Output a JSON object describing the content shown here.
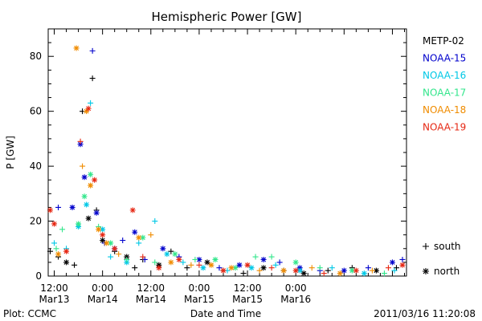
{
  "chart_data": {
    "type": "scatter",
    "title": "Hemispheric Power [GW]",
    "ylabel": "P [GW]",
    "xlabel": "Date and Time",
    "xlim": [
      "2011-03-13 10:30",
      "2011-03-17 03:30"
    ],
    "ylim": [
      0,
      90
    ],
    "y_ticks": [
      0,
      20,
      40,
      60,
      80
    ],
    "x_ticks": [
      {
        "time": "2011-03-13 12:00",
        "label1": "12:00",
        "label2": "Mar13"
      },
      {
        "time": "2011-03-14 00:00",
        "label1": "0:00",
        "label2": "Mar14"
      },
      {
        "time": "2011-03-14 12:00",
        "label1": "12:00",
        "label2": "Mar14"
      },
      {
        "time": "2011-03-15 00:00",
        "label1": "0:00",
        "label2": "Mar15"
      },
      {
        "time": "2011-03-15 12:00",
        "label1": "12:00",
        "label2": "Mar15"
      },
      {
        "time": "2011-03-16 00:00",
        "label1": "0:00",
        "label2": "Mar16"
      }
    ],
    "grid": false,
    "legend_position": "right",
    "series": [
      {
        "name": "METP-02",
        "color": "#000000",
        "points": [
          {
            "t": "2011-03-13 11:00",
            "y": 9,
            "m": "+"
          },
          {
            "t": "2011-03-13 13:00",
            "y": 7,
            "m": "+"
          },
          {
            "t": "2011-03-13 15:00",
            "y": 5,
            "m": "*"
          },
          {
            "t": "2011-03-13 17:00",
            "y": 4,
            "m": "+"
          },
          {
            "t": "2011-03-13 19:00",
            "y": 60,
            "m": "+"
          },
          {
            "t": "2011-03-13 20:30",
            "y": 21,
            "m": "*"
          },
          {
            "t": "2011-03-13 21:30",
            "y": 72,
            "m": "+"
          },
          {
            "t": "2011-03-13 22:30",
            "y": 24,
            "m": "+"
          },
          {
            "t": "2011-03-14 00:00",
            "y": 13,
            "m": "*"
          },
          {
            "t": "2011-03-14 03:00",
            "y": 9,
            "m": "+"
          },
          {
            "t": "2011-03-14 06:00",
            "y": 7,
            "m": "*"
          },
          {
            "t": "2011-03-14 08:00",
            "y": 3,
            "m": "+"
          },
          {
            "t": "2011-03-14 10:00",
            "y": 6,
            "m": "+"
          },
          {
            "t": "2011-03-14 14:00",
            "y": 4,
            "m": "*"
          },
          {
            "t": "2011-03-14 17:00",
            "y": 9,
            "m": "+"
          },
          {
            "t": "2011-03-14 21:00",
            "y": 3,
            "m": "+"
          },
          {
            "t": "2011-03-15 02:00",
            "y": 5,
            "m": "*"
          },
          {
            "t": "2011-03-15 06:00",
            "y": 2,
            "m": "+"
          },
          {
            "t": "2011-03-15 11:00",
            "y": 1,
            "m": "+"
          },
          {
            "t": "2011-03-15 16:00",
            "y": 3,
            "m": "*"
          },
          {
            "t": "2011-03-15 21:00",
            "y": 2,
            "m": "+"
          },
          {
            "t": "2011-03-16 02:00",
            "y": 1,
            "m": "*"
          },
          {
            "t": "2011-03-16 08:00",
            "y": 2,
            "m": "+"
          },
          {
            "t": "2011-03-16 14:00",
            "y": 3,
            "m": "+"
          },
          {
            "t": "2011-03-16 20:00",
            "y": 2,
            "m": "*"
          },
          {
            "t": "2011-03-17 01:00",
            "y": 3,
            "m": "+"
          }
        ]
      },
      {
        "name": "NOAA-15",
        "color": "#0000cc",
        "points": [
          {
            "t": "2011-03-13 13:00",
            "y": 25,
            "m": "+"
          },
          {
            "t": "2011-03-13 16:30",
            "y": 25,
            "m": "*"
          },
          {
            "t": "2011-03-13 18:30",
            "y": 48,
            "m": "*"
          },
          {
            "t": "2011-03-13 19:30",
            "y": 36,
            "m": "*"
          },
          {
            "t": "2011-03-13 21:30",
            "y": 82,
            "m": "+"
          },
          {
            "t": "2011-03-13 22:30",
            "y": 23,
            "m": "*"
          },
          {
            "t": "2011-03-14 00:30",
            "y": 12,
            "m": "+"
          },
          {
            "t": "2011-03-14 03:00",
            "y": 10,
            "m": "*"
          },
          {
            "t": "2011-03-14 05:00",
            "y": 13,
            "m": "+"
          },
          {
            "t": "2011-03-14 08:00",
            "y": 16,
            "m": "*"
          },
          {
            "t": "2011-03-14 10:30",
            "y": 6,
            "m": "+"
          },
          {
            "t": "2011-03-14 15:00",
            "y": 10,
            "m": "*"
          },
          {
            "t": "2011-03-14 19:00",
            "y": 7,
            "m": "+"
          },
          {
            "t": "2011-03-15 00:00",
            "y": 6,
            "m": "*"
          },
          {
            "t": "2011-03-15 05:00",
            "y": 3,
            "m": "+"
          },
          {
            "t": "2011-03-15 10:00",
            "y": 4,
            "m": "*"
          },
          {
            "t": "2011-03-15 16:00",
            "y": 6,
            "m": "*"
          },
          {
            "t": "2011-03-15 20:00",
            "y": 5,
            "m": "+"
          },
          {
            "t": "2011-03-16 01:00",
            "y": 3,
            "m": "*"
          },
          {
            "t": "2011-03-16 06:00",
            "y": 2,
            "m": "+"
          },
          {
            "t": "2011-03-16 12:00",
            "y": 2,
            "m": "*"
          },
          {
            "t": "2011-03-16 18:00",
            "y": 3,
            "m": "+"
          },
          {
            "t": "2011-03-17 00:00",
            "y": 5,
            "m": "*"
          },
          {
            "t": "2011-03-17 02:30",
            "y": 6,
            "m": "+"
          }
        ]
      },
      {
        "name": "NOAA-16",
        "color": "#00c8e6",
        "points": [
          {
            "t": "2011-03-13 12:00",
            "y": 12,
            "m": "+"
          },
          {
            "t": "2011-03-13 15:00",
            "y": 10,
            "m": "+"
          },
          {
            "t": "2011-03-13 18:00",
            "y": 18,
            "m": "*"
          },
          {
            "t": "2011-03-13 20:00",
            "y": 26,
            "m": "*"
          },
          {
            "t": "2011-03-13 21:00",
            "y": 63,
            "m": "+"
          },
          {
            "t": "2011-03-14 00:00",
            "y": 17,
            "m": "*"
          },
          {
            "t": "2011-03-14 02:00",
            "y": 7,
            "m": "+"
          },
          {
            "t": "2011-03-14 06:00",
            "y": 5,
            "m": "*"
          },
          {
            "t": "2011-03-14 09:00",
            "y": 12,
            "m": "+"
          },
          {
            "t": "2011-03-14 13:00",
            "y": 20,
            "m": "+"
          },
          {
            "t": "2011-03-14 16:00",
            "y": 8,
            "m": "*"
          },
          {
            "t": "2011-03-14 20:00",
            "y": 5,
            "m": "+"
          },
          {
            "t": "2011-03-15 01:00",
            "y": 3,
            "m": "*"
          },
          {
            "t": "2011-03-15 07:00",
            "y": 2,
            "m": "+"
          },
          {
            "t": "2011-03-15 13:00",
            "y": 3,
            "m": "*"
          },
          {
            "t": "2011-03-15 19:00",
            "y": 4,
            "m": "+"
          },
          {
            "t": "2011-03-16 01:00",
            "y": 2,
            "m": "*"
          },
          {
            "t": "2011-03-16 09:00",
            "y": 3,
            "m": "+"
          },
          {
            "t": "2011-03-16 17:00",
            "y": 1,
            "m": "*"
          },
          {
            "t": "2011-03-17 00:30",
            "y": 2,
            "m": "+"
          }
        ]
      },
      {
        "name": "NOAA-17",
        "color": "#33e68c",
        "points": [
          {
            "t": "2011-03-13 12:30",
            "y": 10,
            "m": "+"
          },
          {
            "t": "2011-03-13 14:00",
            "y": 17,
            "m": "+"
          },
          {
            "t": "2011-03-13 18:00",
            "y": 19,
            "m": "*"
          },
          {
            "t": "2011-03-13 19:30",
            "y": 29,
            "m": "*"
          },
          {
            "t": "2011-03-13 21:00",
            "y": 37,
            "m": "*"
          },
          {
            "t": "2011-03-13 23:00",
            "y": 18,
            "m": "+"
          },
          {
            "t": "2011-03-14 02:00",
            "y": 12,
            "m": "*"
          },
          {
            "t": "2011-03-14 06:00",
            "y": 6,
            "m": "+"
          },
          {
            "t": "2011-03-14 10:00",
            "y": 14,
            "m": "*"
          },
          {
            "t": "2011-03-14 13:00",
            "y": 5,
            "m": "+"
          },
          {
            "t": "2011-03-14 18:00",
            "y": 8,
            "m": "*"
          },
          {
            "t": "2011-03-14 23:00",
            "y": 6,
            "m": "+"
          },
          {
            "t": "2011-03-15 04:00",
            "y": 6,
            "m": "*"
          },
          {
            "t": "2011-03-15 09:00",
            "y": 3,
            "m": "*"
          },
          {
            "t": "2011-03-15 14:00",
            "y": 7,
            "m": "+"
          },
          {
            "t": "2011-03-15 18:00",
            "y": 7,
            "m": "+"
          },
          {
            "t": "2011-03-16 00:00",
            "y": 5,
            "m": "*"
          },
          {
            "t": "2011-03-16 06:00",
            "y": 3,
            "m": "+"
          },
          {
            "t": "2011-03-16 14:00",
            "y": 2,
            "m": "*"
          },
          {
            "t": "2011-03-16 22:00",
            "y": 1,
            "m": "+"
          }
        ]
      },
      {
        "name": "NOAA-18",
        "color": "#f08c00",
        "points": [
          {
            "t": "2011-03-13 13:00",
            "y": 8,
            "m": "*"
          },
          {
            "t": "2011-03-13 17:30",
            "y": 83,
            "m": "*"
          },
          {
            "t": "2011-03-13 19:00",
            "y": 40,
            "m": "+"
          },
          {
            "t": "2011-03-13 20:00",
            "y": 60,
            "m": "*"
          },
          {
            "t": "2011-03-13 21:00",
            "y": 33,
            "m": "*"
          },
          {
            "t": "2011-03-13 23:00",
            "y": 17,
            "m": "*"
          },
          {
            "t": "2011-03-14 01:00",
            "y": 12,
            "m": "*"
          },
          {
            "t": "2011-03-14 04:00",
            "y": 8,
            "m": "+"
          },
          {
            "t": "2011-03-14 09:00",
            "y": 14,
            "m": "*"
          },
          {
            "t": "2011-03-14 12:00",
            "y": 15,
            "m": "+"
          },
          {
            "t": "2011-03-14 17:00",
            "y": 5,
            "m": "*"
          },
          {
            "t": "2011-03-14 22:00",
            "y": 4,
            "m": "+"
          },
          {
            "t": "2011-03-15 03:00",
            "y": 4,
            "m": "*"
          },
          {
            "t": "2011-03-15 08:00",
            "y": 3,
            "m": "*"
          },
          {
            "t": "2011-03-15 15:00",
            "y": 2,
            "m": "+"
          },
          {
            "t": "2011-03-15 21:00",
            "y": 2,
            "m": "*"
          },
          {
            "t": "2011-03-16 04:00",
            "y": 3,
            "m": "+"
          },
          {
            "t": "2011-03-16 11:00",
            "y": 1,
            "m": "*"
          },
          {
            "t": "2011-03-16 19:00",
            "y": 2,
            "m": "+"
          }
        ]
      },
      {
        "name": "NOAA-19",
        "color": "#e62814",
        "points": [
          {
            "t": "2011-03-13 11:00",
            "y": 24,
            "m": "*"
          },
          {
            "t": "2011-03-13 12:00",
            "y": 19,
            "m": "*"
          },
          {
            "t": "2011-03-13 15:00",
            "y": 9,
            "m": "*"
          },
          {
            "t": "2011-03-13 18:30",
            "y": 49,
            "m": "+"
          },
          {
            "t": "2011-03-13 20:30",
            "y": 61,
            "m": "*"
          },
          {
            "t": "2011-03-13 22:00",
            "y": 35,
            "m": "*"
          },
          {
            "t": "2011-03-14 00:00",
            "y": 15,
            "m": "*"
          },
          {
            "t": "2011-03-14 03:00",
            "y": 10,
            "m": "*"
          },
          {
            "t": "2011-03-14 07:30",
            "y": 24,
            "m": "*"
          },
          {
            "t": "2011-03-14 10:00",
            "y": 7,
            "m": "+"
          },
          {
            "t": "2011-03-14 14:00",
            "y": 3,
            "m": "*"
          },
          {
            "t": "2011-03-14 19:00",
            "y": 6,
            "m": "*"
          },
          {
            "t": "2011-03-15 00:00",
            "y": 4,
            "m": "+"
          },
          {
            "t": "2011-03-15 06:00",
            "y": 2,
            "m": "*"
          },
          {
            "t": "2011-03-15 12:00",
            "y": 4,
            "m": "*"
          },
          {
            "t": "2011-03-15 18:00",
            "y": 3,
            "m": "+"
          },
          {
            "t": "2011-03-16 00:00",
            "y": 2,
            "m": "*"
          },
          {
            "t": "2011-03-16 07:00",
            "y": 1,
            "m": "+"
          },
          {
            "t": "2011-03-16 15:00",
            "y": 2,
            "m": "*"
          },
          {
            "t": "2011-03-16 23:00",
            "y": 3,
            "m": "+"
          },
          {
            "t": "2011-03-17 02:30",
            "y": 4,
            "m": "*"
          }
        ]
      }
    ],
    "symbol_legend": [
      {
        "symbol": "+",
        "label": "south"
      },
      {
        "symbol": "*",
        "label": "north"
      }
    ]
  },
  "footer": {
    "left": "Plot: CCMC",
    "right": "2011/03/16 11:20:08"
  }
}
